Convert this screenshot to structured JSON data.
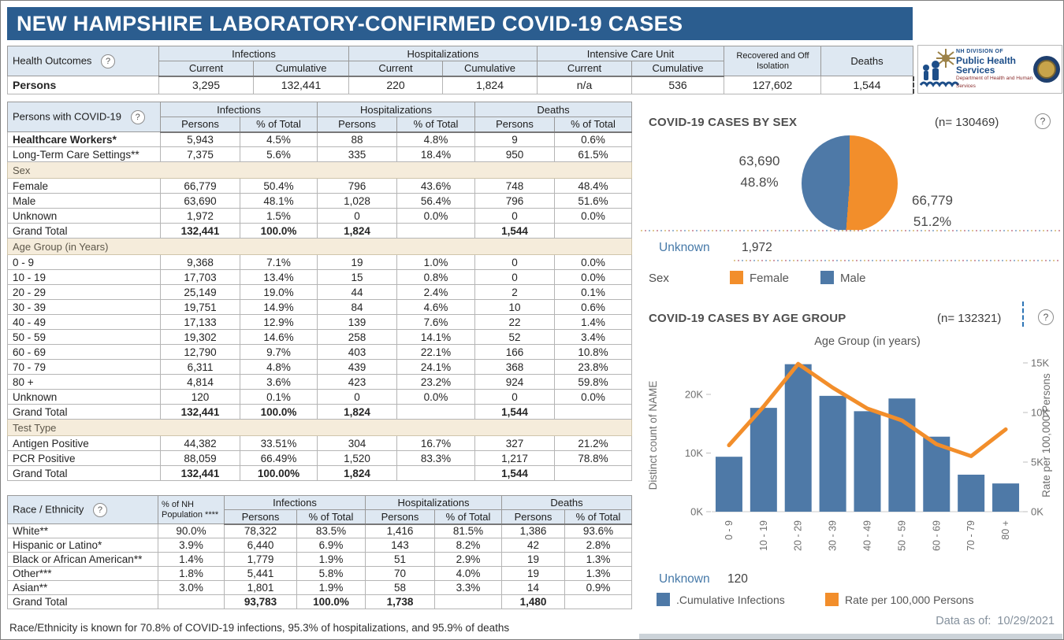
{
  "title": "NEW HAMPSHIRE LABORATORY-CONFIRMED COVID-19 CASES",
  "colors": {
    "title_bar": "#2b5d8f",
    "header_fill": "#dee8f2",
    "band_fill": "#f5ecdb",
    "bar_blue": "#4e79a7",
    "line_orange": "#f28e2b",
    "link_blue": "#4679a8"
  },
  "health_outcomes": {
    "label": "Health Outcomes",
    "groups": [
      "Infections",
      "Hospitalizations",
      "Intensive Care Unit"
    ],
    "sub": [
      "Current",
      "Cumulative",
      "Current",
      "Cumulative",
      "Current",
      "Cumulative"
    ],
    "recovered_header": "Recovered and Off Isolation",
    "deaths_header": "Deaths",
    "row": {
      "label": "Persons",
      "values": [
        "3,295",
        "132,441",
        "220",
        "1,824",
        "n/a",
        "536",
        "127,602",
        "1,544"
      ]
    }
  },
  "persons_table": {
    "label": "Persons with COVID-19",
    "groups": [
      "Infections",
      "Hospitalizations",
      "Deaths"
    ],
    "sub": [
      "Persons",
      "% of Total",
      "Persons",
      "% of Total",
      "Persons",
      "% of Total"
    ],
    "rows": [
      {
        "label": "Healthcare Workers*",
        "bold": true,
        "values": [
          "5,943",
          "4.5%",
          "88",
          "4.8%",
          "9",
          "0.6%"
        ]
      },
      {
        "label": "Long-Term Care Settings**",
        "values": [
          "7,375",
          "5.6%",
          "335",
          "18.4%",
          "950",
          "61.5%"
        ]
      }
    ],
    "sections": [
      {
        "header": "Sex",
        "rows": [
          {
            "label": "Female",
            "values": [
              "66,779",
              "50.4%",
              "796",
              "43.6%",
              "748",
              "48.4%"
            ]
          },
          {
            "label": "Male",
            "values": [
              "63,690",
              "48.1%",
              "1,028",
              "56.4%",
              "796",
              "51.6%"
            ]
          },
          {
            "label": "Unknown",
            "values": [
              "1,972",
              "1.5%",
              "0",
              "0.0%",
              "0",
              "0.0%"
            ]
          },
          {
            "label": "Grand Total",
            "total": true,
            "values": [
              "132,441",
              "100.0%",
              "1,824",
              "",
              "1,544",
              ""
            ]
          }
        ]
      },
      {
        "header": "Age Group (in Years)",
        "rows": [
          {
            "label": "0 - 9",
            "values": [
              "9,368",
              "7.1%",
              "19",
              "1.0%",
              "0",
              "0.0%"
            ]
          },
          {
            "label": "10 - 19",
            "values": [
              "17,703",
              "13.4%",
              "15",
              "0.8%",
              "0",
              "0.0%"
            ]
          },
          {
            "label": "20 - 29",
            "values": [
              "25,149",
              "19.0%",
              "44",
              "2.4%",
              "2",
              "0.1%"
            ]
          },
          {
            "label": "30 - 39",
            "values": [
              "19,751",
              "14.9%",
              "84",
              "4.6%",
              "10",
              "0.6%"
            ]
          },
          {
            "label": "40 - 49",
            "values": [
              "17,133",
              "12.9%",
              "139",
              "7.6%",
              "22",
              "1.4%"
            ]
          },
          {
            "label": "50 - 59",
            "values": [
              "19,302",
              "14.6%",
              "258",
              "14.1%",
              "52",
              "3.4%"
            ]
          },
          {
            "label": "60 - 69",
            "values": [
              "12,790",
              "9.7%",
              "403",
              "22.1%",
              "166",
              "10.8%"
            ]
          },
          {
            "label": "70 - 79",
            "values": [
              "6,311",
              "4.8%",
              "439",
              "24.1%",
              "368",
              "23.8%"
            ]
          },
          {
            "label": "80 +",
            "values": [
              "4,814",
              "3.6%",
              "423",
              "23.2%",
              "924",
              "59.8%"
            ]
          },
          {
            "label": "Unknown",
            "values": [
              "120",
              "0.1%",
              "0",
              "0.0%",
              "0",
              "0.0%"
            ]
          },
          {
            "label": "Grand Total",
            "total": true,
            "values": [
              "132,441",
              "100.0%",
              "1,824",
              "",
              "1,544",
              ""
            ]
          }
        ]
      },
      {
        "header": "Test Type",
        "rows": [
          {
            "label": "Antigen Positive",
            "values": [
              "44,382",
              "33.51%",
              "304",
              "16.7%",
              "327",
              "21.2%"
            ]
          },
          {
            "label": "PCR Positive",
            "values": [
              "88,059",
              "66.49%",
              "1,520",
              "83.3%",
              "1,217",
              "78.8%"
            ]
          },
          {
            "label": "Grand Total",
            "total": true,
            "values": [
              "132,441",
              "100.00%",
              "1,824",
              "",
              "1,544",
              ""
            ]
          }
        ]
      }
    ]
  },
  "race_table": {
    "label": "Race / Ethnicity",
    "pop_header": "% of NH Population ****",
    "groups": [
      "Infections",
      "Hospitalizations",
      "Deaths"
    ],
    "sub": [
      "Persons",
      "% of Total",
      "Persons",
      "% of Total",
      "Persons",
      "% of Total"
    ],
    "rows": [
      {
        "label": "White**",
        "values": [
          "90.0%",
          "78,322",
          "83.5%",
          "1,416",
          "81.5%",
          "1,386",
          "93.6%"
        ]
      },
      {
        "label": "Hispanic or Latino*",
        "values": [
          "3.9%",
          "6,440",
          "6.9%",
          "143",
          "8.2%",
          "42",
          "2.8%"
        ]
      },
      {
        "label": "Black or African American**",
        "values": [
          "1.4%",
          "1,779",
          "1.9%",
          "51",
          "2.9%",
          "19",
          "1.3%"
        ]
      },
      {
        "label": "Other***",
        "values": [
          "1.8%",
          "5,441",
          "5.8%",
          "70",
          "4.0%",
          "19",
          "1.3%"
        ]
      },
      {
        "label": "Asian**",
        "values": [
          "3.0%",
          "1,801",
          "1.9%",
          "58",
          "3.3%",
          "14",
          "0.9%"
        ]
      },
      {
        "label": "Grand Total",
        "total": true,
        "values": [
          "",
          "93,783",
          "100.0%",
          "1,738",
          "",
          "1,480",
          ""
        ]
      }
    ]
  },
  "footnote": "Race/Ethnicity is known for 70.8% of COVID-19 infections, 95.3% of hospitalizations, and 95.9% of deaths",
  "footer": {
    "data_as_of_label": "Data as of:",
    "data_as_of_value": "10/29/2021"
  },
  "logo": {
    "line1": "NH DIVISION OF",
    "line2": "Public Health Services",
    "line3": "Department of Health and Human Services"
  },
  "chart_data": [
    {
      "type": "pie",
      "title": "COVID-19 CASES BY SEX",
      "n_label": "(n= 130469)",
      "legend_title": "Sex",
      "slices": [
        {
          "label": "Female",
          "value": 66779,
          "pct": 51.2,
          "display_value": "66,779",
          "display_pct": "51.2%",
          "color": "#f28e2b"
        },
        {
          "label": "Male",
          "value": 63690,
          "pct": 48.8,
          "display_value": "63,690",
          "display_pct": "48.8%",
          "color": "#4e79a7"
        }
      ],
      "unknown_label": "Unknown",
      "unknown_value": "1,972",
      "legend_position": "bottom"
    },
    {
      "type": "bar",
      "title": "COVID-19 CASES BY AGE GROUP",
      "n_label": "(n= 132321)",
      "x_title": "Age Group (in years)",
      "categories": [
        "0 - 9",
        "10 - 19",
        "20 - 29",
        "30 - 39",
        "40 - 49",
        "50 - 59",
        "60 - 69",
        "70 - 79",
        "80 +"
      ],
      "series": [
        {
          "name": ".Cumulative Infections",
          "type": "bar",
          "axis": "left",
          "color": "#4e79a7",
          "values": [
            9368,
            17703,
            25149,
            19751,
            17133,
            19302,
            12790,
            6311,
            4814
          ]
        },
        {
          "name": "Rate per 100,000 Persons",
          "type": "line",
          "axis": "right",
          "color": "#f28e2b",
          "values": [
            6700,
            10600,
            14900,
            12500,
            10400,
            9200,
            6800,
            5600,
            8300
          ]
        }
      ],
      "left_axis": {
        "title": "Distinct count of NAME",
        "ticks": [
          0,
          10000,
          20000
        ],
        "tick_labels": [
          "0K",
          "10K",
          "20K"
        ],
        "max": 26800
      },
      "right_axis": {
        "title": "Rate per 100,000 Persons",
        "ticks": [
          0,
          5000,
          10000,
          15000
        ],
        "tick_labels": [
          "0K",
          "5K",
          "10K",
          "15K"
        ],
        "max": 15000
      },
      "unknown_label": "Unknown",
      "unknown_value": "120",
      "grid": false,
      "legend_position": "bottom"
    }
  ]
}
